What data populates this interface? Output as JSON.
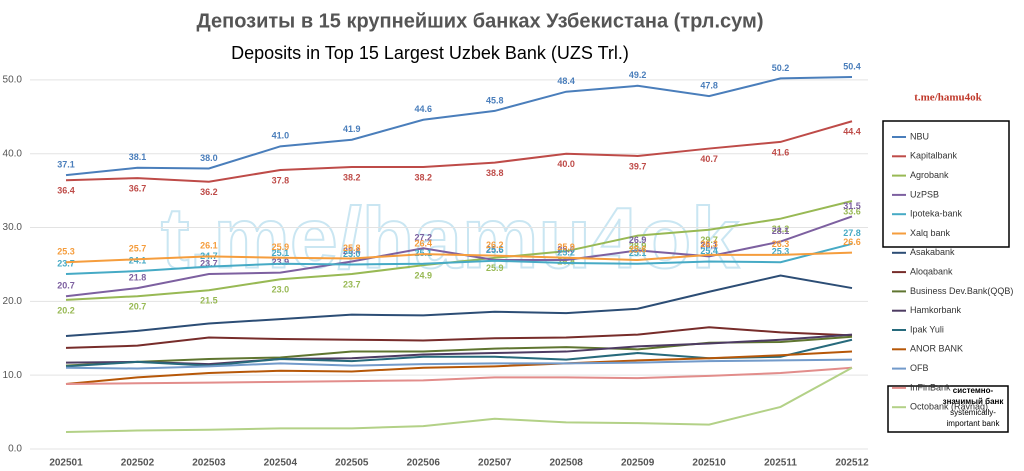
{
  "chart_data": {
    "type": "line",
    "title": "Депозиты в 15 крупнейших банках Узбекистана (трл.сум)",
    "subtitle": "Deposits in Top 15 Largest Uzbek Bank (UZS Trl.)",
    "watermark": "t.me/hamu4ok",
    "channel": "t.me/hamu4ok",
    "note": [
      "системно-",
      "значимый банк",
      "systemically-",
      "important bank"
    ],
    "categories": [
      "202501",
      "202502",
      "202503",
      "202504",
      "202505",
      "202506",
      "202507",
      "202508",
      "202509",
      "202510",
      "202511",
      "202512"
    ],
    "ylim": [
      0,
      55
    ],
    "yticks": [
      {
        "value": 0,
        "label": "0.0"
      },
      {
        "value": 10,
        "label": "10.0"
      },
      {
        "value": 20,
        "label": "20.0"
      },
      {
        "value": 30,
        "label": "30.0"
      },
      {
        "value": 40,
        "label": "40.0"
      },
      {
        "value": 50,
        "label": "50.0"
      }
    ],
    "grid": true,
    "legend": "right",
    "series": [
      {
        "name": "NBU",
        "color": "#4a7ebb",
        "values": [
          37.1,
          38.1,
          38.0,
          41.0,
          41.9,
          44.6,
          45.8,
          48.4,
          49.2,
          47.8,
          50.2,
          50.4
        ],
        "value_labels": [
          "37.1",
          "38.1",
          "38.0",
          "41.0",
          "41.9",
          "44.6",
          "45.8",
          "48.4",
          "49.2",
          "47.8",
          "50.2",
          "50.4"
        ]
      },
      {
        "name": "Kapitalbank",
        "color": "#be4b48",
        "values": [
          36.4,
          36.7,
          36.2,
          37.8,
          38.2,
          38.2,
          38.8,
          40.0,
          39.7,
          40.7,
          41.6,
          44.4
        ],
        "value_labels": [
          "36.4",
          "36.7",
          "36.2",
          "37.8",
          "38.2",
          "38.2",
          "38.8",
          "40.0",
          "39.7",
          "40.7",
          "41.6",
          "44.4"
        ]
      },
      {
        "name": "Agrobank",
        "color": "#98b954",
        "values": [
          20.2,
          20.7,
          21.5,
          23.0,
          23.7,
          24.9,
          25.9,
          26.8,
          28.9,
          29.7,
          31.2,
          33.6
        ],
        "value_labels": [
          "20.2",
          "20.7",
          "21.5",
          "23.0",
          "23.7",
          "24.9",
          "25.9",
          "26.8",
          "28.9",
          "29.7",
          "31.2",
          "33.6"
        ]
      },
      {
        "name": "UzPSB",
        "color": "#7d60a0",
        "values": [
          20.7,
          21.8,
          23.7,
          23.9,
          25.4,
          27.2,
          25.6,
          25.6,
          26.9,
          26.1,
          28.1,
          31.5
        ],
        "value_labels": [
          "20.7",
          "21.8",
          "23.7",
          "23.9",
          "25.4",
          "27.2",
          "25.6",
          "25.6",
          "26.9",
          "26.1",
          "28.1",
          "31.5"
        ]
      },
      {
        "name": "Ipoteka-bank",
        "color": "#46aac5",
        "values": [
          23.7,
          24.1,
          24.7,
          25.1,
          25.0,
          25.1,
          25.5,
          25.2,
          25.1,
          25.4,
          25.3,
          27.8
        ],
        "value_labels": [
          "23.7",
          "24.1",
          "24.7",
          "25.1",
          "25.0",
          "25.1",
          "25.5",
          "25.2",
          "25.1",
          "25.4",
          "25.3",
          "27.8"
        ]
      },
      {
        "name": "Xalq bank",
        "color": "#f59d3d",
        "values": [
          25.3,
          25.7,
          26.1,
          25.9,
          25.8,
          26.4,
          26.2,
          25.9,
          25.6,
          26.3,
          26.3,
          26.6
        ],
        "value_labels": [
          "25.3",
          "25.7",
          "26.1",
          "25.9",
          "25.8",
          "26.4",
          "26.2",
          "25.9",
          "25.6",
          "26.3",
          "26.3",
          "26.6"
        ]
      },
      {
        "name": "Asakabank",
        "color": "#2c4d75",
        "values": [
          15.3,
          16.0,
          17.0,
          17.6,
          18.2,
          18.1,
          18.6,
          18.4,
          19.0,
          21.3,
          23.5,
          21.8
        ]
      },
      {
        "name": "Aloqabank",
        "color": "#772c2a",
        "values": [
          13.7,
          14.0,
          15.1,
          14.9,
          14.8,
          14.7,
          15.0,
          15.1,
          15.5,
          16.5,
          15.8,
          15.4
        ]
      },
      {
        "name": "Business Dev.Bank(QQB)",
        "color": "#5f7530",
        "values": [
          11.3,
          11.8,
          12.2,
          12.4,
          13.2,
          13.2,
          13.6,
          13.8,
          13.5,
          14.4,
          14.5,
          15.2
        ]
      },
      {
        "name": "Hamkorbank",
        "color": "#4d3b62",
        "values": [
          11.7,
          11.8,
          11.5,
          12.2,
          12.3,
          12.8,
          13.0,
          13.2,
          13.9,
          14.3,
          14.8,
          15.5
        ]
      },
      {
        "name": "Ipak Yuli",
        "color": "#276a7c",
        "values": [
          11.2,
          11.8,
          11.3,
          12.2,
          11.9,
          12.5,
          12.5,
          12.1,
          13.0,
          12.3,
          12.5,
          14.8
        ]
      },
      {
        "name": "ANOR BANK",
        "color": "#b65708",
        "values": [
          8.8,
          9.7,
          10.3,
          10.6,
          10.5,
          11.0,
          11.2,
          11.6,
          12.0,
          12.3,
          12.7,
          13.2
        ]
      },
      {
        "name": "OFB",
        "color": "#729aca",
        "values": [
          11.0,
          10.9,
          11.2,
          11.6,
          11.3,
          11.5,
          11.6,
          11.6,
          11.7,
          11.9,
          12.0,
          12.1
        ]
      },
      {
        "name": "InFinBank",
        "color": "#e28d8b",
        "values": [
          8.8,
          8.9,
          9.0,
          9.1,
          9.2,
          9.3,
          9.7,
          9.7,
          9.6,
          9.9,
          10.3,
          11.0
        ]
      },
      {
        "name": "Octobank (Ravnaq)",
        "color": "#b3d187",
        "values": [
          2.3,
          2.5,
          2.6,
          2.8,
          2.8,
          3.1,
          4.1,
          3.6,
          3.5,
          3.3,
          5.7,
          11.0
        ]
      }
    ]
  }
}
